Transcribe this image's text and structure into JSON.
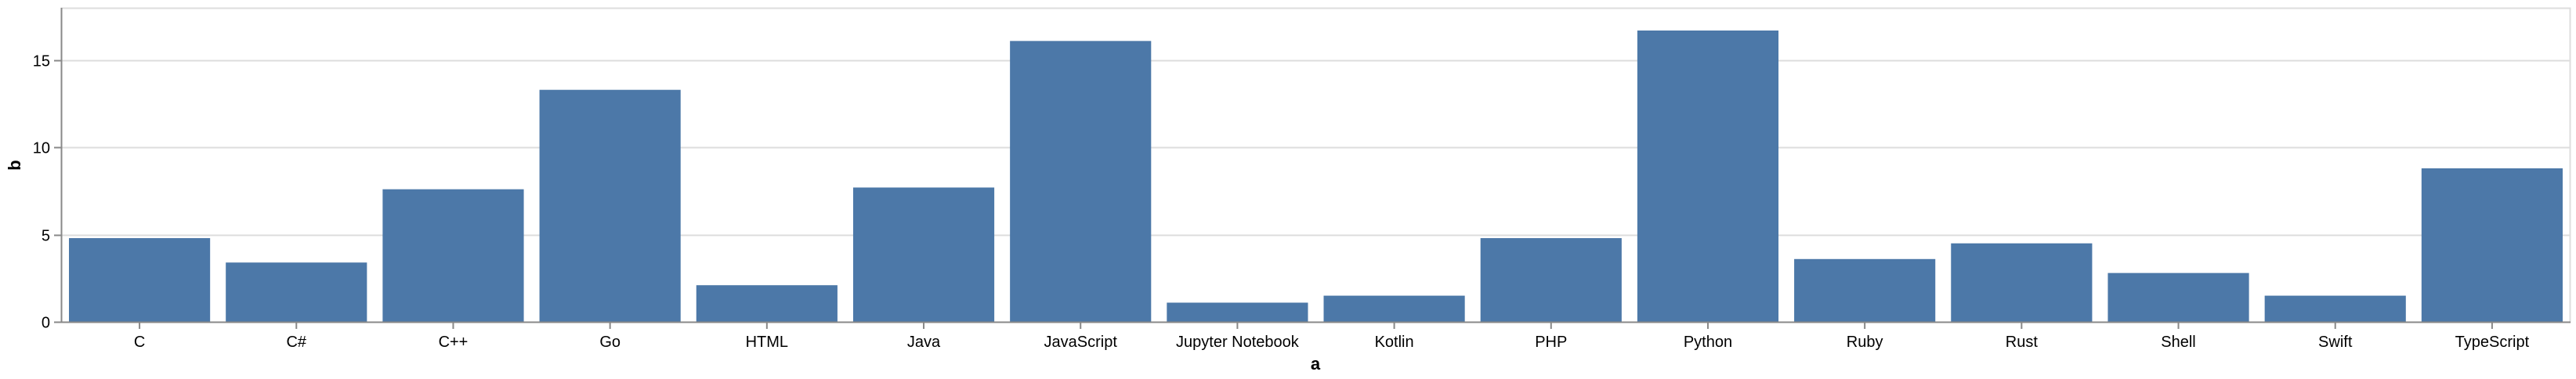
{
  "chart_data": {
    "type": "bar",
    "categories": [
      "C",
      "C#",
      "C++",
      "Go",
      "HTML",
      "Java",
      "JavaScript",
      "Jupyter Notebook",
      "Kotlin",
      "PHP",
      "Python",
      "Ruby",
      "Rust",
      "Shell",
      "Swift",
      "TypeScript"
    ],
    "values": [
      4.8,
      3.4,
      7.6,
      13.3,
      2.1,
      7.7,
      16.1,
      1.1,
      1.5,
      4.8,
      16.7,
      3.6,
      4.5,
      2.8,
      1.5,
      8.8
    ],
    "xlabel": "a",
    "ylabel": "b",
    "ylim": [
      0,
      18
    ],
    "yticks": [
      0,
      5,
      10,
      15
    ],
    "grid": true,
    "bar_color": "#4c78a8",
    "grid_color": "#dddddd",
    "axis_color": "#888888"
  }
}
